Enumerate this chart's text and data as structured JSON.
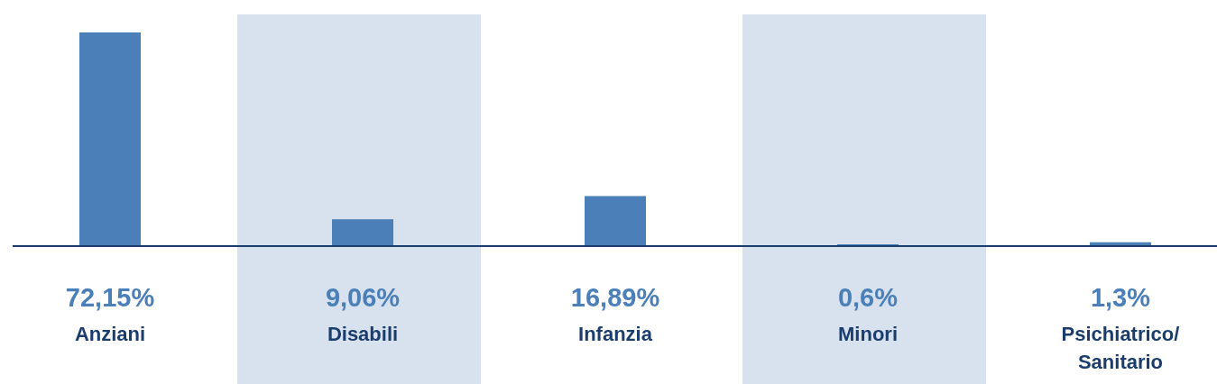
{
  "chart_data": {
    "type": "bar",
    "categories": [
      "Anziani",
      "Disabili",
      "Infanzia",
      "Minori",
      "Psichiatrico/ Sanitario"
    ],
    "values": [
      72.15,
      9.06,
      16.89,
      0.6,
      1.3
    ],
    "value_labels": [
      "72,15%",
      "9,06%",
      "16,89%",
      "0,6%",
      "1,3%"
    ],
    "color": "#4a7fb8"
  }
}
